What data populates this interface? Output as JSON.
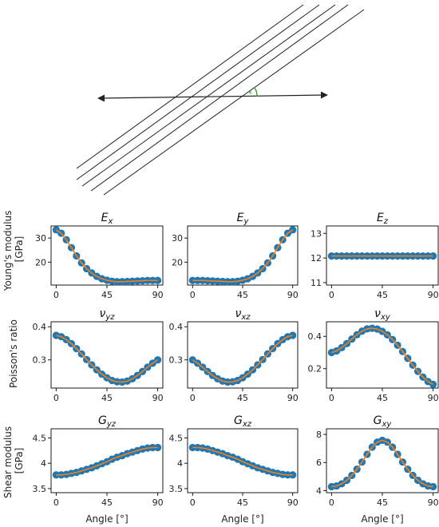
{
  "colors": {
    "marker": "#1f77b4",
    "fit_line": "#ff7f0e",
    "diagram_lines": "#222222",
    "angle_arc": "#2ca02c"
  },
  "diagram": {
    "angle_symbol": "θ"
  },
  "labels": {
    "xlabel": "Angle [°]",
    "row_ylabels": [
      [
        "Young's modulus",
        "[GPa]"
      ],
      [
        "Poisson's ratio",
        ""
      ],
      [
        "Shear modulus",
        "[GPa]"
      ]
    ]
  },
  "chart_data": [
    {
      "type": "line",
      "title_main": "E",
      "title_sub": "x",
      "row": 0,
      "col": 0,
      "x": [
        0,
        4.5,
        9,
        13.5,
        18,
        22.5,
        27,
        31.5,
        36,
        40.5,
        45,
        49.5,
        54,
        58.5,
        63,
        67.5,
        72,
        76.5,
        81,
        85.5,
        90
      ],
      "y": [
        33.4,
        32.0,
        29.3,
        26.0,
        22.6,
        19.7,
        17.3,
        15.5,
        14.1,
        13.1,
        12.5,
        12.1,
        11.9,
        11.9,
        12.0,
        12.1,
        12.2,
        12.3,
        12.4,
        12.4,
        12.4
      ],
      "xticks": [
        0,
        45,
        90
      ],
      "yticks": [
        20,
        30
      ],
      "ylim": [
        10.5,
        35
      ]
    },
    {
      "type": "line",
      "title_main": "E",
      "title_sub": "y",
      "row": 0,
      "col": 1,
      "x": [
        0,
        4.5,
        9,
        13.5,
        18,
        22.5,
        27,
        31.5,
        36,
        40.5,
        45,
        49.5,
        54,
        58.5,
        63,
        67.5,
        72,
        76.5,
        81,
        85.5,
        90
      ],
      "y": [
        12.4,
        12.4,
        12.4,
        12.3,
        12.2,
        12.1,
        12.0,
        11.9,
        11.9,
        12.1,
        12.5,
        13.1,
        14.1,
        15.5,
        17.3,
        19.7,
        22.6,
        26.0,
        29.3,
        32.0,
        33.4
      ],
      "xticks": [
        0,
        45,
        90
      ],
      "yticks": [
        20,
        30
      ],
      "ylim": [
        10.5,
        35
      ]
    },
    {
      "type": "line",
      "title_main": "E",
      "title_sub": "z",
      "row": 0,
      "col": 2,
      "x": [
        0,
        4.5,
        9,
        13.5,
        18,
        22.5,
        27,
        31.5,
        36,
        40.5,
        45,
        49.5,
        54,
        58.5,
        63,
        67.5,
        72,
        76.5,
        81,
        85.5,
        90
      ],
      "y": [
        12.08,
        12.08,
        12.08,
        12.08,
        12.08,
        12.08,
        12.08,
        12.08,
        12.08,
        12.08,
        12.08,
        12.08,
        12.08,
        12.08,
        12.08,
        12.08,
        12.08,
        12.08,
        12.08,
        12.08,
        12.08
      ],
      "xticks": [
        0,
        45,
        90
      ],
      "yticks": [
        11,
        12,
        13
      ],
      "ylim": [
        10.9,
        13.3
      ]
    },
    {
      "type": "line",
      "title_main": "ν",
      "title_sub": "yz",
      "row": 1,
      "col": 0,
      "x": [
        0,
        4.5,
        9,
        13.5,
        18,
        22.5,
        27,
        31.5,
        36,
        40.5,
        45,
        49.5,
        54,
        58.5,
        63,
        67.5,
        72,
        76.5,
        81,
        85.5,
        90
      ],
      "y": [
        0.374,
        0.37,
        0.361,
        0.349,
        0.334,
        0.318,
        0.301,
        0.285,
        0.27,
        0.257,
        0.246,
        0.238,
        0.234,
        0.233,
        0.236,
        0.243,
        0.253,
        0.265,
        0.278,
        0.29,
        0.3
      ],
      "xticks": [
        0,
        45,
        90
      ],
      "yticks": [
        0.3,
        0.4
      ],
      "ylim": [
        0.215,
        0.415
      ]
    },
    {
      "type": "line",
      "title_main": "ν",
      "title_sub": "xz",
      "row": 1,
      "col": 1,
      "x": [
        0,
        4.5,
        9,
        13.5,
        18,
        22.5,
        27,
        31.5,
        36,
        40.5,
        45,
        49.5,
        54,
        58.5,
        63,
        67.5,
        72,
        76.5,
        81,
        85.5,
        90
      ],
      "y": [
        0.3,
        0.29,
        0.278,
        0.265,
        0.253,
        0.243,
        0.236,
        0.233,
        0.234,
        0.238,
        0.246,
        0.257,
        0.27,
        0.285,
        0.301,
        0.318,
        0.334,
        0.349,
        0.361,
        0.37,
        0.374
      ],
      "xticks": [
        0,
        45,
        90
      ],
      "yticks": [
        0.3,
        0.4
      ],
      "ylim": [
        0.215,
        0.415
      ]
    },
    {
      "type": "line",
      "title_main": "ν",
      "title_sub": "xy",
      "row": 1,
      "col": 2,
      "x": [
        0,
        4.5,
        9,
        13.5,
        18,
        22.5,
        27,
        31.5,
        36,
        40.5,
        45,
        49.5,
        54,
        58.5,
        63,
        67.5,
        72,
        76.5,
        81,
        85.5,
        90
      ],
      "y": [
        0.3,
        0.31,
        0.33,
        0.355,
        0.383,
        0.41,
        0.432,
        0.446,
        0.45,
        0.445,
        0.431,
        0.409,
        0.38,
        0.345,
        0.306,
        0.264,
        0.222,
        0.183,
        0.148,
        0.12,
        0.103
      ],
      "xticks": [
        0,
        45,
        90
      ],
      "yticks": [
        0.2,
        0.4
      ],
      "ylim": [
        0.08,
        0.49
      ]
    },
    {
      "type": "line",
      "title_main": "G",
      "title_sub": "yz",
      "row": 2,
      "col": 0,
      "x": [
        0,
        4.5,
        9,
        13.5,
        18,
        22.5,
        27,
        31.5,
        36,
        40.5,
        45,
        49.5,
        54,
        58.5,
        63,
        67.5,
        72,
        76.5,
        81,
        85.5,
        90
      ],
      "y": [
        3.77,
        3.77,
        3.78,
        3.8,
        3.82,
        3.85,
        3.88,
        3.91,
        3.95,
        3.99,
        4.03,
        4.08,
        4.12,
        4.15,
        4.19,
        4.22,
        4.25,
        4.28,
        4.3,
        4.31,
        4.31
      ],
      "xticks": [
        0,
        45,
        90
      ],
      "yticks": [
        3.5,
        4.0,
        4.5
      ],
      "ylim": [
        3.42,
        4.68
      ]
    },
    {
      "type": "line",
      "title_main": "G",
      "title_sub": "xz",
      "row": 2,
      "col": 1,
      "x": [
        0,
        4.5,
        9,
        13.5,
        18,
        22.5,
        27,
        31.5,
        36,
        40.5,
        45,
        49.5,
        54,
        58.5,
        63,
        67.5,
        72,
        76.5,
        81,
        85.5,
        90
      ],
      "y": [
        4.31,
        4.31,
        4.3,
        4.28,
        4.25,
        4.22,
        4.19,
        4.15,
        4.12,
        4.08,
        4.03,
        3.99,
        3.95,
        3.91,
        3.88,
        3.85,
        3.82,
        3.8,
        3.78,
        3.77,
        3.77
      ],
      "xticks": [
        0,
        45,
        90
      ],
      "yticks": [
        3.5,
        4.0,
        4.5
      ],
      "ylim": [
        3.42,
        4.68
      ]
    },
    {
      "type": "line",
      "title_main": "G",
      "title_sub": "xy",
      "row": 2,
      "col": 2,
      "x": [
        0,
        4.5,
        9,
        13.5,
        18,
        22.5,
        27,
        31.5,
        36,
        40.5,
        45,
        49.5,
        54,
        58.5,
        63,
        67.5,
        72,
        76.5,
        81,
        85.5,
        90
      ],
      "y": [
        4.28,
        4.33,
        4.48,
        4.73,
        5.08,
        5.52,
        6.03,
        6.58,
        7.09,
        7.45,
        7.58,
        7.45,
        7.09,
        6.58,
        6.03,
        5.52,
        5.08,
        4.73,
        4.48,
        4.33,
        4.28
      ],
      "xticks": [
        0,
        45,
        90
      ],
      "yticks": [
        4,
        6,
        8
      ],
      "ylim": [
        3.85,
        8.4
      ]
    }
  ]
}
